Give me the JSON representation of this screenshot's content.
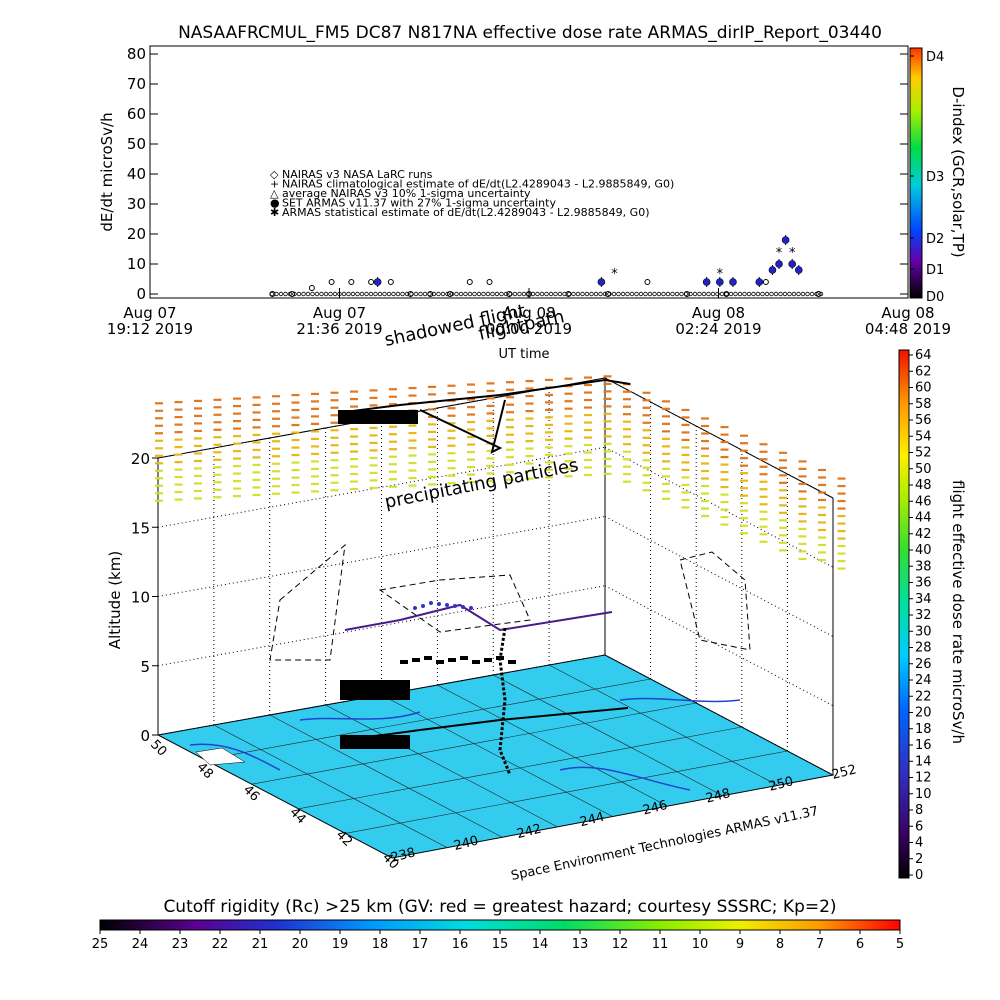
{
  "header": {
    "title": "NASAAFRCMUL_FM5 DC87 N817NA effective dose rate ARMAS_dirIP_Report_03440"
  },
  "top_panel": {
    "ylabel": "dE/dt microSv/h",
    "xlabel": "UT time",
    "x_ticks": [
      {
        "line1": "Aug 07",
        "line2": "19:12 2019"
      },
      {
        "line1": "Aug 07",
        "line2": "21:36 2019"
      },
      {
        "line1": "Aug 08",
        "line2": "00:00 2019"
      },
      {
        "line1": "Aug 08",
        "line2": "02:24 2019"
      },
      {
        "line1": "Aug 08",
        "line2": "04:48 2019"
      }
    ],
    "legend": [
      "NAIRAS v3 NASA LaRC runs",
      "NAIRAS climatological estimate of dE/dt(L2.4289043 - L2.9885849, G0)",
      "average NAIRAS v3 10% 1-sigma uncertainty",
      "SET ARMAS v11.37 with 27% 1-sigma uncertainty",
      "ARMAS statistical estimate of dE/dt(L2.4289043 - L2.9885849, G0)"
    ],
    "dindex_label": "D-index (GCR,solar,TP)",
    "dindex_ticks": [
      "D4",
      "D3",
      "D2",
      "D1",
      "D0"
    ],
    "annotations": {
      "shadowed": "shadowed flight",
      "path": "flightpath"
    }
  },
  "main_panel": {
    "zlabel": "Altitude (km)",
    "z_ticks": [
      "0",
      "5",
      "10",
      "15",
      "20"
    ],
    "lat_ticks": [
      "50",
      "48",
      "46",
      "44",
      "42",
      "40"
    ],
    "lon_ticks": [
      "238",
      "240",
      "242",
      "244",
      "246",
      "248",
      "250",
      "252"
    ],
    "credit": "Space Environment Technologies ARMAS v11.37",
    "annotation": "precipitating particles",
    "surface_color": "#33ccee"
  },
  "right_colorbar": {
    "label": "flight effective dose rate microSv/h",
    "ticks": [
      "64",
      "62",
      "60",
      "58",
      "56",
      "54",
      "52",
      "50",
      "48",
      "46",
      "44",
      "42",
      "40",
      "38",
      "36",
      "34",
      "32",
      "30",
      "28",
      "26",
      "24",
      "22",
      "20",
      "18",
      "16",
      "14",
      "12",
      "10",
      "8",
      "6",
      "4",
      "2",
      "0"
    ]
  },
  "bottom_colorbar": {
    "label": "Cutoff rigidity (Rc) >25 km (GV: red = greatest hazard; courtesy SSSRC; Kp=2)",
    "ticks": [
      "25",
      "24",
      "23",
      "22",
      "21",
      "20",
      "19",
      "18",
      "17",
      "16",
      "15",
      "14",
      "13",
      "12",
      "11",
      "10",
      "9",
      "8",
      "7",
      "6",
      "5"
    ]
  },
  "chart_data": {
    "type": "scatter",
    "title": "NASAAFRCMUL_FM5 DC87 N817NA effective dose rate ARMAS_dirIP_Report_03440",
    "xlabel": "UT time",
    "ylabel": "dE/dt microSv/h",
    "ylim": [
      0,
      80
    ],
    "xlim": [
      "2019-08-07 19:12",
      "2019-08-08 04:48"
    ],
    "series": [
      {
        "name": "NAIRAS v3 NASA LaRC runs",
        "x": [
          "2019-08-07 20:45",
          "2019-08-07 21:00",
          "2019-08-07 21:15",
          "2019-08-07 21:30",
          "2019-08-07 21:45",
          "2019-08-07 22:00",
          "2019-08-07 22:15",
          "2019-08-07 22:30",
          "2019-08-07 22:45",
          "2019-08-07 23:00",
          "2019-08-07 23:15",
          "2019-08-07 23:30",
          "2019-08-07 23:45",
          "2019-08-08 00:00",
          "2019-08-08 00:30",
          "2019-08-08 01:00",
          "2019-08-08 01:30",
          "2019-08-08 02:00",
          "2019-08-08 02:30",
          "2019-08-08 03:00",
          "2019-08-08 03:20",
          "2019-08-08 03:40"
        ],
        "values": [
          0,
          0,
          2,
          4,
          4,
          4,
          4,
          0,
          0,
          0,
          4,
          4,
          0,
          0,
          0,
          0,
          4,
          0,
          0,
          4,
          10,
          0
        ]
      },
      {
        "name": "SET ARMAS v11.37 with 27% 1-sigma uncertainty",
        "x": [
          "2019-08-07 22:05",
          "2019-08-08 00:55",
          "2019-08-08 02:15",
          "2019-08-08 02:25",
          "2019-08-08 02:35",
          "2019-08-08 02:55",
          "2019-08-08 03:05",
          "2019-08-08 03:10",
          "2019-08-08 03:15",
          "2019-08-08 03:20",
          "2019-08-08 03:25"
        ],
        "values": [
          4,
          4,
          4,
          4,
          4,
          4,
          8,
          10,
          18,
          10,
          8
        ]
      },
      {
        "name": "ARMAS statistical estimate of dE/dt(L2.4289043 - L2.9885849, G0)",
        "x": [
          "2019-08-08 01:05",
          "2019-08-08 02:25",
          "2019-08-08 03:10",
          "2019-08-08 03:20"
        ],
        "values": [
          7,
          7,
          14,
          14
        ]
      }
    ]
  }
}
